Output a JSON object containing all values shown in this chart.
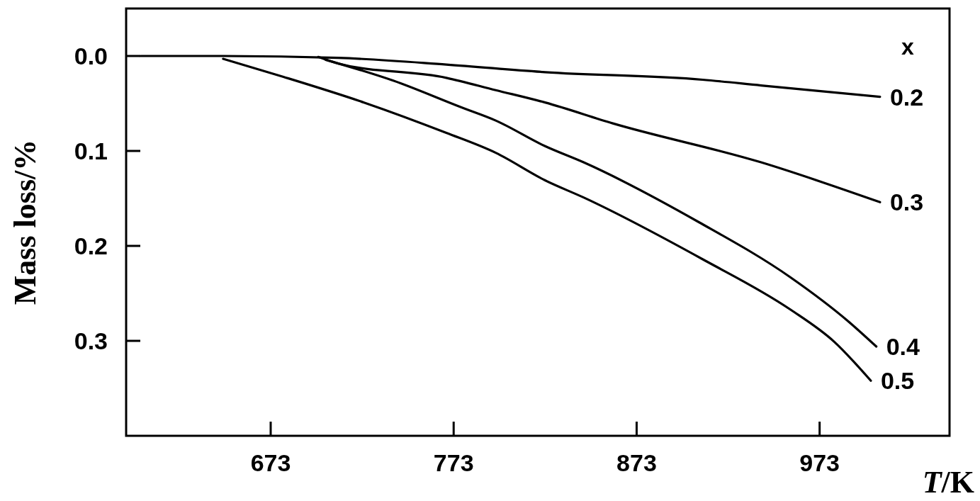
{
  "chart_data": {
    "type": "line",
    "xlabel": "T/K",
    "ylabel": "Mass loss/%",
    "legend_title": "x",
    "xlim": [
      594,
      1044
    ],
    "ylim": [
      0.4,
      -0.05
    ],
    "xticks": [
      673,
      773,
      873,
      973
    ],
    "yticks": [
      {
        "value": 0,
        "label": "0.0"
      },
      0.1,
      0.2,
      0.3
    ],
    "series": [
      {
        "name": "0.2",
        "color": "#000000",
        "x": [
          602,
          647,
          710,
          769,
          823,
          909,
          941,
          1006
        ],
        "values": [
          0,
          0,
          0.002,
          0.009,
          0.017,
          0.025,
          0.031,
          0.043
        ]
      },
      {
        "name": "0.3",
        "color": "#000000",
        "x": [
          699,
          710,
          769,
          796,
          823,
          860,
          941,
          1006
        ],
        "values": [
          0.001,
          0.008,
          0.023,
          0.036,
          0.049,
          0.071,
          0.112,
          0.154
        ]
      },
      {
        "name": "0.4",
        "color": "#000000",
        "x": [
          703,
          740,
          777,
          796,
          823,
          844,
          907,
          957,
          989,
          1004
        ],
        "values": [
          0.004,
          0.026,
          0.054,
          0.068,
          0.095,
          0.112,
          0.175,
          0.233,
          0.28,
          0.306
        ]
      },
      {
        "name": "0.5",
        "color": "#000000",
        "x": [
          647,
          680,
          724,
          769,
          796,
          823,
          844,
          909,
          957,
          981,
          1001
        ],
        "values": [
          0.003,
          0.022,
          0.049,
          0.081,
          0.102,
          0.131,
          0.149,
          0.214,
          0.267,
          0.301,
          0.342
        ]
      }
    ]
  }
}
